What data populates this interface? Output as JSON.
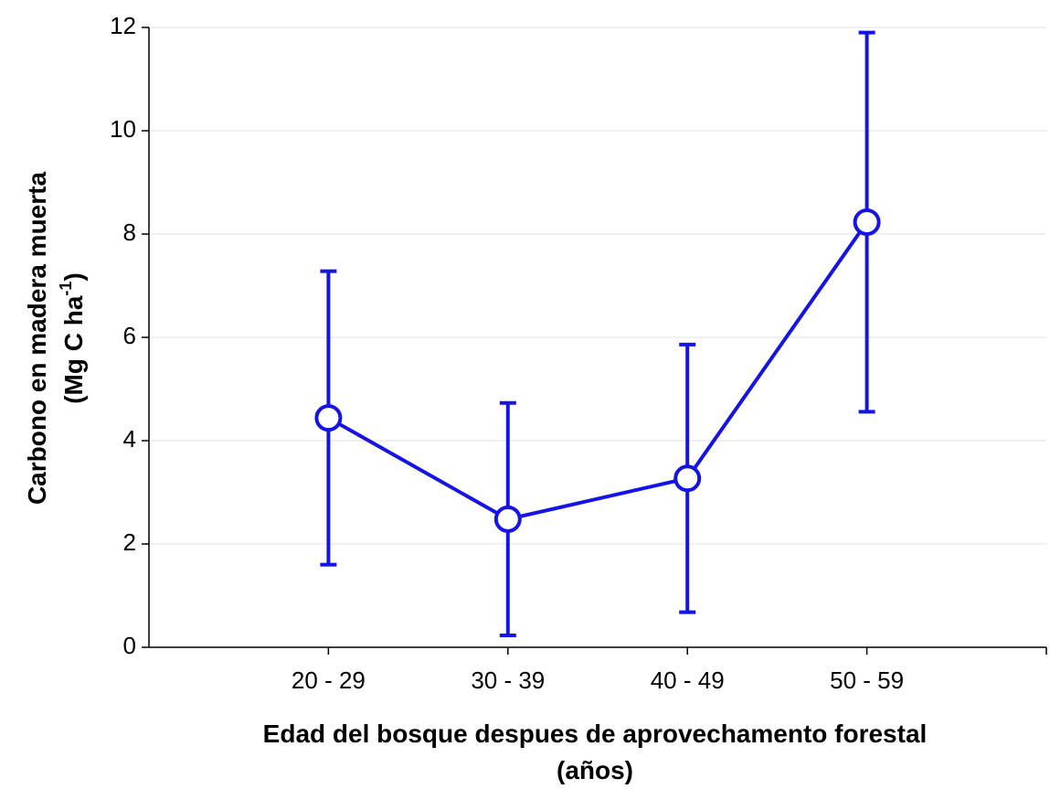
{
  "chart_data": {
    "type": "line",
    "xlabel": [
      "Edad del bosque despues de aprovechamento forestal",
      "(años)"
    ],
    "ylabel": [
      "Carbono en madera muerta",
      "(Mg C ha",
      "-1",
      ")"
    ],
    "categories": [
      "20 - 29",
      "30 - 39",
      "40 - 49",
      "50 - 59"
    ],
    "values": [
      4.44,
      2.48,
      3.27,
      8.23
    ],
    "errors": [
      2.84,
      2.25,
      2.59,
      3.67
    ],
    "color": "#1414e6",
    "ylim": [
      0,
      12
    ],
    "yticks": [
      0,
      2,
      4,
      6,
      8,
      10,
      12
    ],
    "grid": true
  }
}
